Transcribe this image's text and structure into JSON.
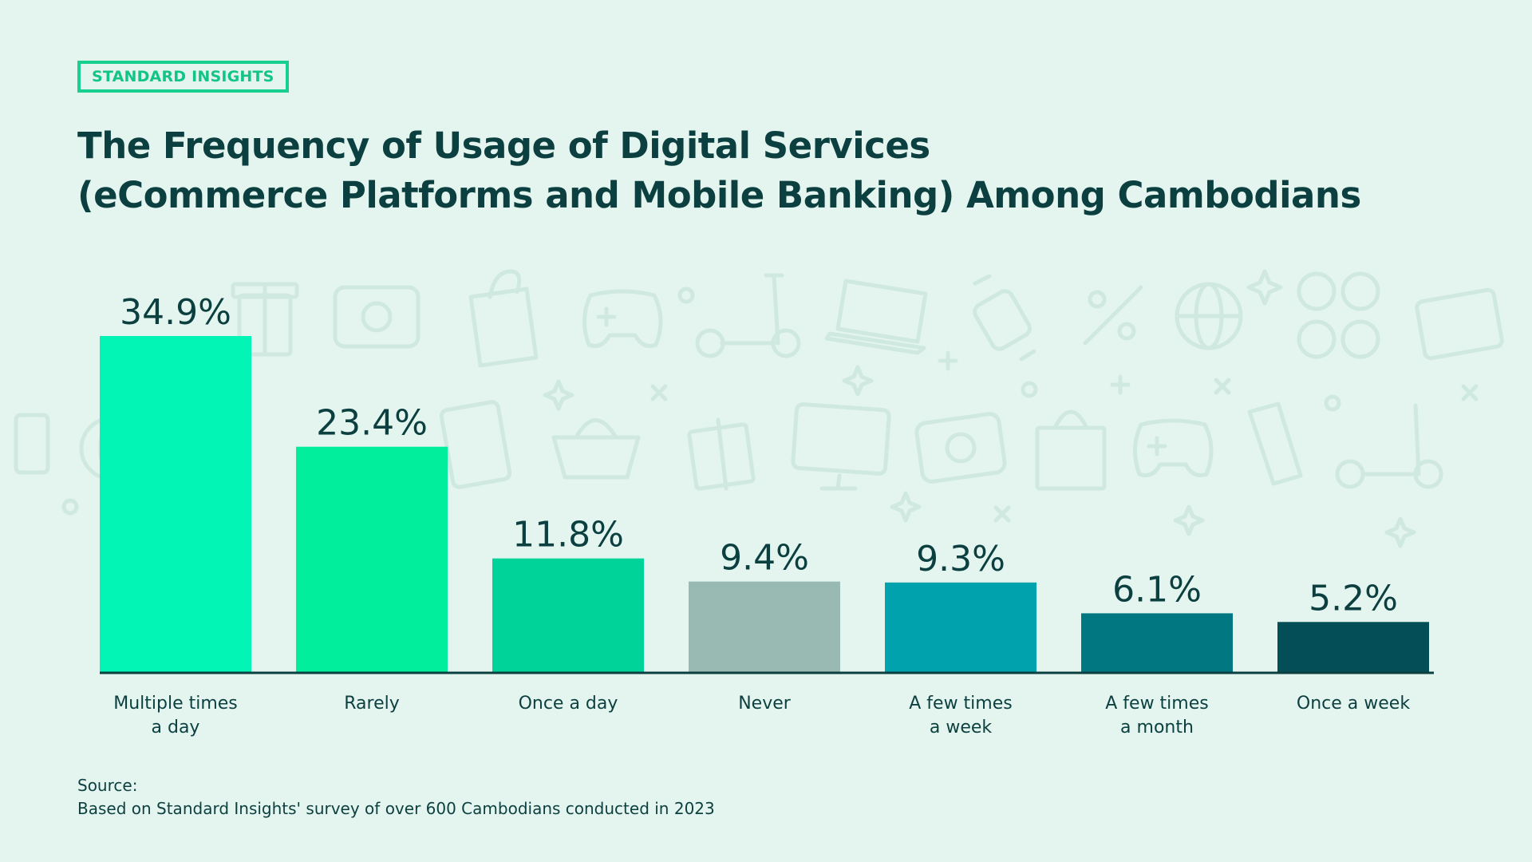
{
  "brand": {
    "badge_label": "STANDARD INSIGHTS"
  },
  "header": {
    "title_line1": "The Frequency of Usage of Digital Services",
    "title_line2": "(eCommerce Platforms and Mobile Banking) Among Cambodians"
  },
  "footer": {
    "source_label": "Source:",
    "source_text": "Based on Standard Insights' survey of over 600 Cambodians conducted in 2023"
  },
  "colors": {
    "background": "#e3f5ee",
    "title": "#0c3f40",
    "accent": "#17d08f"
  },
  "chart_data": {
    "type": "bar",
    "categories": [
      [
        "Multiple times",
        "a day"
      ],
      [
        "Rarely"
      ],
      [
        "Once a day"
      ],
      [
        "Never"
      ],
      [
        "A few times",
        "a week"
      ],
      [
        "A few times",
        "a month"
      ],
      [
        "Once a week"
      ]
    ],
    "values": [
      34.9,
      23.4,
      11.8,
      9.4,
      9.3,
      6.1,
      5.2
    ],
    "value_labels": [
      "34.9%",
      "23.4%",
      "11.8%",
      "9.4%",
      "9.3%",
      "6.1%",
      "5.2%"
    ],
    "bar_colors": [
      "#02f5b4",
      "#01ef9c",
      "#00d399",
      "#98bab2",
      "#00a3ad",
      "#017781",
      "#034e57"
    ],
    "ylim": [
      0,
      34.9
    ],
    "grid": false,
    "legend": "none"
  }
}
